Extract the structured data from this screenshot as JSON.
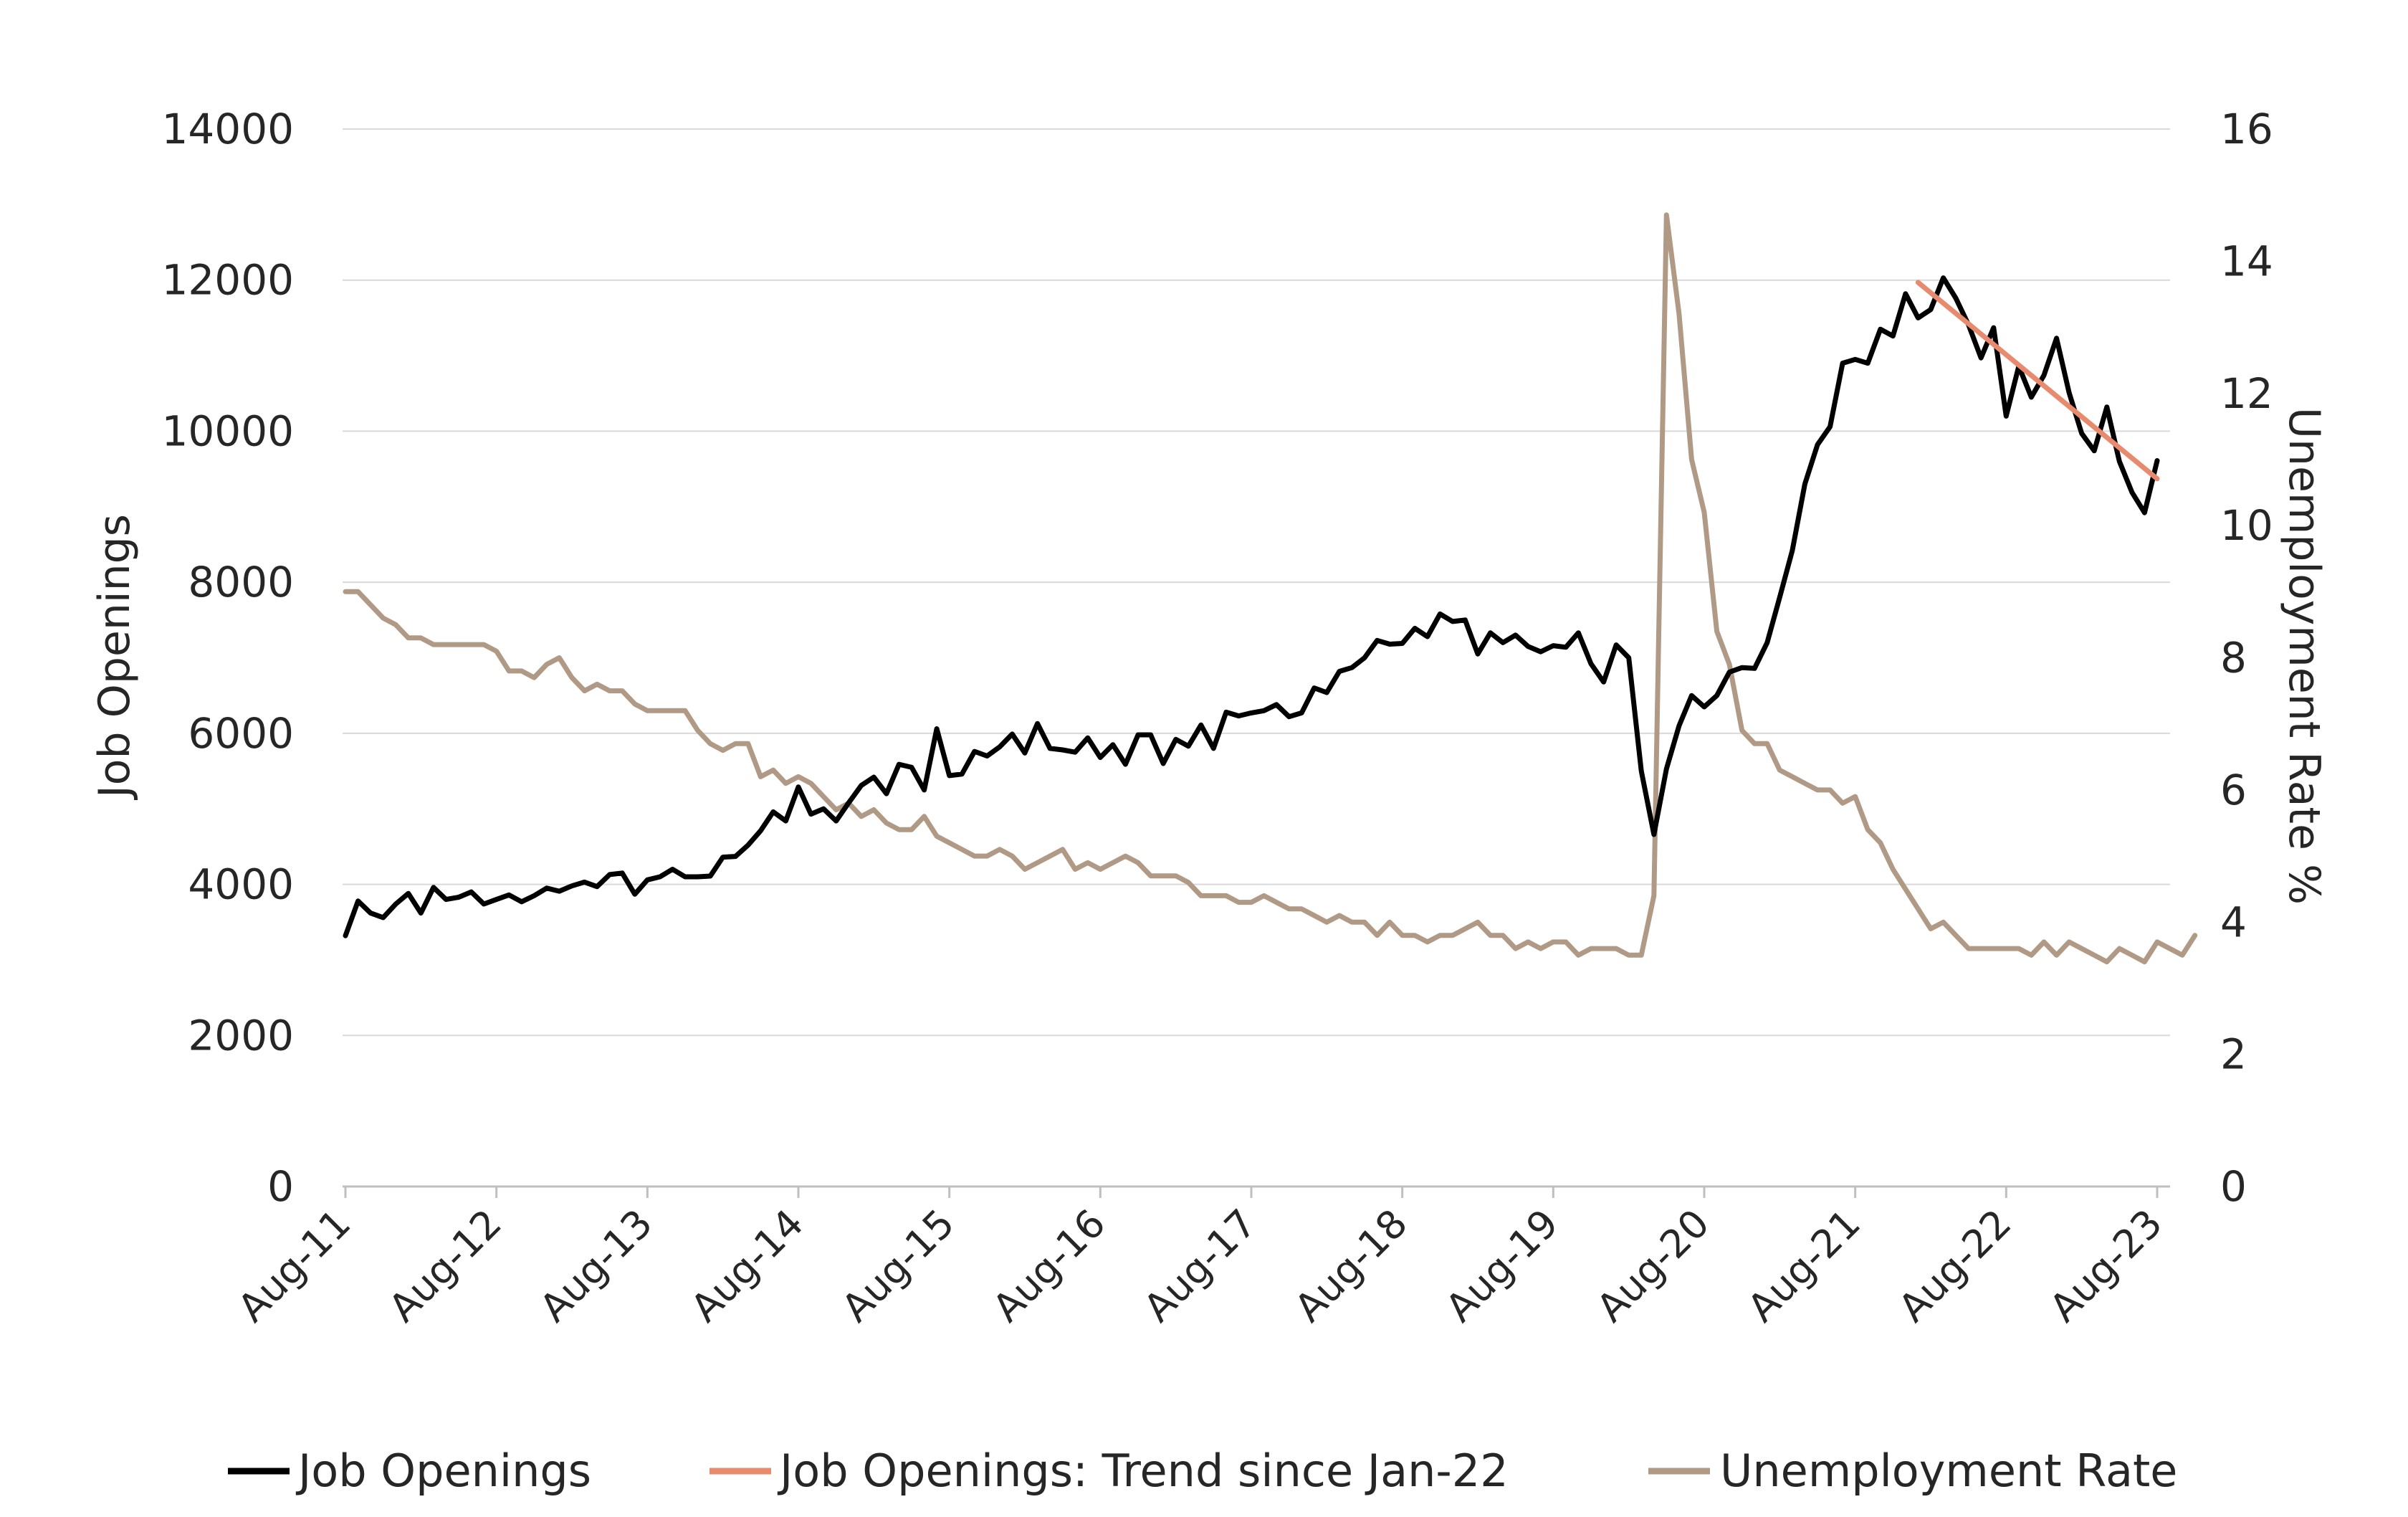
{
  "chart_data": {
    "type": "line",
    "title": "",
    "ylabel": "Job Openings",
    "y2label": "Unemployment Rate %",
    "ylim": [
      0,
      14000
    ],
    "y2lim": [
      0,
      16
    ],
    "yticks": [
      "0",
      "2000",
      "4000",
      "6000",
      "8000",
      "10000",
      "12000",
      "14000"
    ],
    "y2ticks": [
      "0",
      "2",
      "4",
      "6",
      "8",
      "10",
      "12",
      "14",
      "16"
    ],
    "xticks": [
      "Aug-11",
      "Aug-12",
      "Aug-13",
      "Aug-14",
      "Aug-15",
      "Aug-16",
      "Aug-17",
      "Aug-18",
      "Aug-19",
      "Aug-20",
      "Aug-21",
      "Aug-22",
      "Aug-23"
    ],
    "grid": true,
    "legend_position": "bottom",
    "x_start": "Aug-11",
    "x_frequency": "monthly",
    "series": [
      {
        "name": "Job Openings",
        "axis": "left",
        "color": "#000000",
        "values": [
          3320,
          3780,
          3620,
          3560,
          3740,
          3880,
          3620,
          3960,
          3800,
          3830,
          3900,
          3740,
          3800,
          3860,
          3770,
          3850,
          3950,
          3910,
          3980,
          4030,
          3970,
          4130,
          4150,
          3870,
          4060,
          4100,
          4200,
          4100,
          4100,
          4110,
          4360,
          4370,
          4520,
          4710,
          4960,
          4840,
          5290,
          4930,
          5000,
          4840,
          5080,
          5310,
          5420,
          5200,
          5590,
          5550,
          5250,
          6060,
          5440,
          5460,
          5760,
          5700,
          5820,
          5990,
          5740,
          6130,
          5800,
          5780,
          5750,
          5940,
          5680,
          5850,
          5590,
          5980,
          5980,
          5600,
          5920,
          5830,
          6110,
          5800,
          6280,
          6230,
          6270,
          6300,
          6380,
          6220,
          6270,
          6600,
          6540,
          6820,
          6870,
          7000,
          7230,
          7180,
          7190,
          7390,
          7280,
          7580,
          7480,
          7500,
          7050,
          7330,
          7200,
          7300,
          7150,
          7080,
          7160,
          7140,
          7330,
          6920,
          6680,
          7170,
          7000,
          5500,
          4660,
          5530,
          6100,
          6500,
          6350,
          6500,
          6810,
          6870,
          6860,
          7200,
          7800,
          8420,
          9300,
          9820,
          10060,
          10900,
          10950,
          10900,
          11350,
          11260,
          11820,
          11500,
          11610,
          12030,
          11760,
          11410,
          10970,
          11370,
          10200,
          10860,
          10450,
          10740,
          11230,
          10510,
          9970,
          9740,
          10320,
          9600,
          9190,
          8920,
          9610
        ]
      },
      {
        "name": "Job Openings: Trend since Jan-22",
        "axis": "left",
        "color": "#e88a6e",
        "start_label": "Jan-22",
        "start_value": 11970,
        "end_label": "Aug-23",
        "end_value": 9370
      },
      {
        "name": "Unemployment Rate",
        "axis": "right",
        "color": "#b09a86",
        "values": [
          9.0,
          9.0,
          8.8,
          8.6,
          8.5,
          8.3,
          8.3,
          8.2,
          8.2,
          8.2,
          8.2,
          8.2,
          8.1,
          7.8,
          7.8,
          7.7,
          7.9,
          8.0,
          7.7,
          7.5,
          7.6,
          7.5,
          7.5,
          7.3,
          7.2,
          7.2,
          7.2,
          7.2,
          6.9,
          6.7,
          6.6,
          6.7,
          6.7,
          6.2,
          6.3,
          6.1,
          6.2,
          6.1,
          5.9,
          5.7,
          5.8,
          5.6,
          5.7,
          5.5,
          5.4,
          5.4,
          5.6,
          5.3,
          5.2,
          5.1,
          5.0,
          5.0,
          5.1,
          5.0,
          4.8,
          4.9,
          5.0,
          5.1,
          4.8,
          4.9,
          4.8,
          4.9,
          5.0,
          4.9,
          4.7,
          4.7,
          4.7,
          4.6,
          4.4,
          4.4,
          4.4,
          4.3,
          4.3,
          4.4,
          4.3,
          4.2,
          4.2,
          4.1,
          4.0,
          4.1,
          4.0,
          4.0,
          3.8,
          4.0,
          3.8,
          3.8,
          3.7,
          3.8,
          3.8,
          3.9,
          4.0,
          3.8,
          3.8,
          3.6,
          3.7,
          3.6,
          3.7,
          3.7,
          3.5,
          3.6,
          3.6,
          3.6,
          3.5,
          3.5,
          4.4,
          14.7,
          13.2,
          11.0,
          10.2,
          8.4,
          7.9,
          6.9,
          6.7,
          6.7,
          6.3,
          6.2,
          6.1,
          6.0,
          6.0,
          5.8,
          5.9,
          5.4,
          5.2,
          4.8,
          4.5,
          4.2,
          3.9,
          4.0,
          3.8,
          3.6,
          3.6,
          3.6,
          3.6,
          3.6,
          3.5,
          3.7,
          3.5,
          3.7,
          3.6,
          3.5,
          3.4,
          3.6,
          3.5,
          3.4,
          3.7,
          3.6,
          3.5,
          3.8
        ]
      }
    ]
  }
}
